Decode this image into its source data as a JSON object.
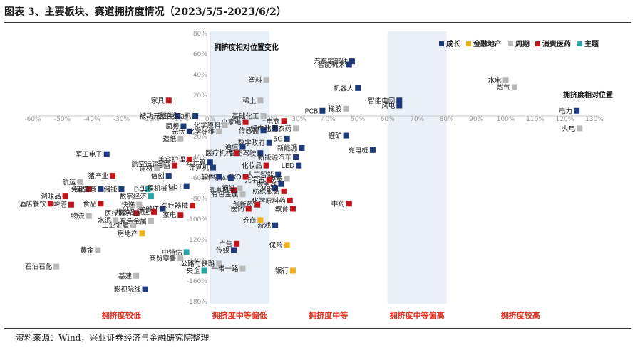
{
  "title": "图表 3、主要板块、赛道拥挤度情况（2023/5/5-2023/6/2）",
  "source": "资料来源：Wind，兴业证券经济与金融研究院整理",
  "colors": {
    "成长": "#1f3a7a",
    "金融地产": "#f2b21c",
    "周期": "#b8b8b8",
    "消费医药": "#c0171e",
    "主题": "#2aa6a6",
    "band_light": "#eaf0f8",
    "band_dark": "#dde6f3",
    "band_text": "#e03020"
  },
  "chart_data": {
    "type": "scatter",
    "xlabel": "拥挤度相对位置",
    "ylabel": "拥挤度相对位置变化",
    "xlim": [
      -60,
      130
    ],
    "ylim": [
      -180,
      80
    ],
    "x_ticks": [
      "-60%",
      "-50%",
      "-40%",
      "-30%",
      "-20%",
      "-10%",
      "0%",
      "10%",
      "20%",
      "30%",
      "40%",
      "50%",
      "60%",
      "70%",
      "80%",
      "90%",
      "100%",
      "110%",
      "120%",
      "130%"
    ],
    "y_ticks": [
      "-180%",
      "-160%",
      "-140%",
      "-120%",
      "-100%",
      "-80%",
      "-60%",
      "-40%",
      "-20%",
      "0%",
      "20%",
      "40%",
      "60%",
      "80%"
    ],
    "bands": [
      {
        "label": "拥挤度较低",
        "from": -60,
        "to": 0
      },
      {
        "label": "拥挤度中等偏低",
        "from": 0,
        "to": 20
      },
      {
        "label": "拥挤度中等",
        "from": 20,
        "to": 60
      },
      {
        "label": "拥挤度中等偏高",
        "from": 60,
        "to": 80
      },
      {
        "label": "拥挤度较高",
        "from": 80,
        "to": 130
      }
    ],
    "legend": [
      "成长",
      "金融地产",
      "周期",
      "消费医药",
      "主题"
    ],
    "legend_position": "top-right",
    "points": [
      {
        "name": "汽车零部件",
        "x": 48,
        "y": 53,
        "group": "成长"
      },
      {
        "name": "智能机床",
        "x": 47,
        "y": 50,
        "group": "成长"
      },
      {
        "name": "机器人",
        "x": 50,
        "y": 27,
        "group": "成长"
      },
      {
        "name": "橡胶",
        "x": 46,
        "y": 7,
        "group": "周期"
      },
      {
        "name": "PCB",
        "x": 38,
        "y": 5,
        "group": "成长"
      },
      {
        "name": "锂矿",
        "x": 46,
        "y": -19,
        "group": "成长"
      },
      {
        "name": "充电桩",
        "x": 55,
        "y": -33,
        "group": "成长"
      },
      {
        "name": "智能电网",
        "x": 64,
        "y": 15,
        "group": "成长"
      },
      {
        "name": "风电",
        "x": 64,
        "y": 10,
        "group": "成长"
      },
      {
        "name": "水电",
        "x": 100,
        "y": 35,
        "group": "周期"
      },
      {
        "name": "燃气",
        "x": 103,
        "y": 28,
        "group": "周期"
      },
      {
        "name": "电力",
        "x": 124,
        "y": 5,
        "group": "成长"
      },
      {
        "name": "火电",
        "x": 125,
        "y": -12,
        "group": "周期"
      },
      {
        "name": "中药",
        "x": 47,
        "y": -85,
        "group": "消费医药"
      },
      {
        "name": "塑料",
        "x": 19,
        "y": 35,
        "group": "周期"
      },
      {
        "name": "稀土",
        "x": 17,
        "y": 15,
        "group": "周期"
      },
      {
        "name": "基础化工",
        "x": 18,
        "y": 0,
        "group": "周期"
      },
      {
        "name": "电商",
        "x": 25,
        "y": -5,
        "group": "消费医药"
      },
      {
        "name": "锂电池",
        "x": 22,
        "y": -12,
        "group": "成长"
      },
      {
        "name": "化肥农药",
        "x": 29,
        "y": -12,
        "group": "周期"
      },
      {
        "name": "传感器",
        "x": 18,
        "y": -14,
        "group": "成长"
      },
      {
        "name": "小家电",
        "x": 12,
        "y": -6,
        "group": "消费医药"
      },
      {
        "name": "5G",
        "x": 26,
        "y": -22,
        "group": "成长"
      },
      {
        "name": "数字政府",
        "x": 20,
        "y": -26,
        "group": "成长"
      },
      {
        "name": "新能源",
        "x": 31,
        "y": -31,
        "group": "成长"
      },
      {
        "name": "智能驾驶",
        "x": 17,
        "y": -36,
        "group": "成长"
      },
      {
        "name": "新能源汽车",
        "x": 29,
        "y": -40,
        "group": "成长"
      },
      {
        "name": "医疗机构",
        "x": 9,
        "y": -36,
        "group": "消费医药"
      },
      {
        "name": "通信",
        "x": 11,
        "y": -30,
        "group": "成长"
      },
      {
        "name": "LED",
        "x": 30,
        "y": -48,
        "group": "成长"
      },
      {
        "name": "化妆品",
        "x": 19,
        "y": -48,
        "group": "消费医药"
      },
      {
        "name": "人工智能",
        "x": 23,
        "y": -57,
        "group": "成长"
      },
      {
        "name": "煤炭",
        "x": 26,
        "y": -61,
        "group": "周期"
      },
      {
        "name": "服务器",
        "x": 24,
        "y": -66,
        "group": "成长"
      },
      {
        "name": "元宇宙",
        "x": 20,
        "y": -62,
        "group": "消费医药"
      },
      {
        "name": "CXO",
        "x": 12,
        "y": -59,
        "group": "消费医药"
      },
      {
        "name": "VR",
        "x": 22,
        "y": -70,
        "group": "成长"
      },
      {
        "name": "纺织服装",
        "x": 25,
        "y": -73,
        "group": "消费医药"
      },
      {
        "name": "化学原料药",
        "x": 27,
        "y": -82,
        "group": "消费医药"
      },
      {
        "name": "乳制品",
        "x": 8,
        "y": -72,
        "group": "消费医药"
      },
      {
        "name": "钢铁",
        "x": 10,
        "y": -70,
        "group": "周期"
      },
      {
        "name": "有色金属",
        "x": 11,
        "y": -76,
        "group": "周期"
      },
      {
        "name": "半导体",
        "x": 7,
        "y": -60,
        "group": "成长"
      },
      {
        "name": "计算机",
        "x": 1,
        "y": -50,
        "group": "成长"
      },
      {
        "name": "云计算",
        "x": 0,
        "y": -45,
        "group": "成长"
      },
      {
        "name": "软件",
        "x": 3,
        "y": -59,
        "group": "成长"
      },
      {
        "name": "创新药",
        "x": 16,
        "y": -86,
        "group": "消费医药"
      },
      {
        "name": "医药",
        "x": 13,
        "y": -90,
        "group": "消费医药"
      },
      {
        "name": "教育",
        "x": 28,
        "y": -90,
        "group": "消费医药"
      },
      {
        "name": "游戏",
        "x": 22,
        "y": -106,
        "group": "成长"
      },
      {
        "name": "券商",
        "x": 17,
        "y": -101,
        "group": "金融地产"
      },
      {
        "name": "广告",
        "x": 9,
        "y": -124,
        "group": "消费医药"
      },
      {
        "name": "传媒",
        "x": 8,
        "y": -130,
        "group": "成长"
      },
      {
        "name": "保险",
        "x": 26,
        "y": -125,
        "group": "金融地产"
      },
      {
        "name": "公路与铁路",
        "x": 3,
        "y": -143,
        "group": "周期"
      },
      {
        "name": "一带一路",
        "x": 11,
        "y": -148,
        "group": "周期"
      },
      {
        "name": "银行",
        "x": 28,
        "y": -150,
        "group": "金融地产"
      },
      {
        "name": "航空运输",
        "x": -16,
        "y": -47,
        "group": "周期"
      },
      {
        "name": "中特估",
        "x": -8,
        "y": -132,
        "group": "主题"
      },
      {
        "name": "央企",
        "x": -2,
        "y": -150,
        "group": "主题"
      },
      {
        "name": "商贸零售",
        "x": -10,
        "y": -138,
        "group": "周期"
      },
      {
        "name": "IDC",
        "x": -21,
        "y": -71,
        "group": "主题"
      },
      {
        "name": "工程机械",
        "x": -13,
        "y": -70,
        "group": "周期"
      },
      {
        "name": "数字经济",
        "x": -20,
        "y": -78,
        "group": "主题"
      },
      {
        "name": "金融IT",
        "x": -16,
        "y": -90,
        "group": "成长"
      },
      {
        "name": "快递",
        "x": -24,
        "y": -86,
        "group": "周期"
      },
      {
        "name": "医疗服务",
        "x": -25,
        "y": -94,
        "group": "消费医药"
      },
      {
        "name": "旅游及景区",
        "x": -19,
        "y": -93,
        "group": "消费医药"
      },
      {
        "name": "有色金属",
        "x": -20,
        "y": -102,
        "group": "周期"
      },
      {
        "name": "工业金属",
        "x": -26,
        "y": -106,
        "group": "周期"
      },
      {
        "name": "房地产",
        "x": -23,
        "y": -114,
        "group": "金融地产"
      },
      {
        "name": "家电",
        "x": -10,
        "y": -96,
        "group": "消费医药"
      },
      {
        "name": "医疗器械",
        "x": -6,
        "y": -87,
        "group": "消费医药"
      },
      {
        "name": "IGBT",
        "x": -8,
        "y": -68,
        "group": "成长"
      },
      {
        "name": "信创",
        "x": -14,
        "y": -58,
        "group": "成长"
      },
      {
        "name": "白酒",
        "x": -12,
        "y": -48,
        "group": "消费医药"
      },
      {
        "name": "建材",
        "x": -18,
        "y": -51,
        "group": "周期"
      },
      {
        "name": "美容护理",
        "x": -7,
        "y": -42,
        "group": "消费医药"
      },
      {
        "name": "造纸",
        "x": -10,
        "y": -22,
        "group": "周期"
      },
      {
        "name": "面板",
        "x": -9,
        "y": -10,
        "group": "成长"
      },
      {
        "name": "被动元器件",
        "x": -11,
        "y": 0,
        "group": "成长"
      },
      {
        "name": "家具",
        "x": -14,
        "y": 15,
        "group": "消费医药"
      },
      {
        "name": "航空发动机",
        "x": -5,
        "y": 0,
        "group": "成长"
      },
      {
        "name": "光伏",
        "x": -7,
        "y": -15,
        "group": "成长"
      },
      {
        "name": "化学纤维",
        "x": 3,
        "y": -15,
        "group": "周期"
      },
      {
        "name": "化学原料",
        "x": 5,
        "y": -9,
        "group": "周期"
      },
      {
        "name": "军工电子",
        "x": -35,
        "y": -37,
        "group": "成长"
      },
      {
        "name": "猪产业",
        "x": -33,
        "y": -58,
        "group": "消费医药"
      },
      {
        "name": "航运",
        "x": -44,
        "y": -64,
        "group": "周期"
      },
      {
        "name": "免税",
        "x": -41,
        "y": -71,
        "group": "消费医药"
      },
      {
        "name": "运营商",
        "x": -37,
        "y": -71,
        "group": "成长"
      },
      {
        "name": "储能",
        "x": -30,
        "y": -71,
        "group": "成长"
      },
      {
        "name": "调味品",
        "x": -49,
        "y": -78,
        "group": "消费医药"
      },
      {
        "name": "酒店餐饮",
        "x": -54,
        "y": -85,
        "group": "消费医药"
      },
      {
        "name": "啤酒",
        "x": -47,
        "y": -86,
        "group": "消费医药"
      },
      {
        "name": "食品",
        "x": -37,
        "y": -85,
        "group": "消费医药"
      },
      {
        "name": "物流",
        "x": -41,
        "y": -97,
        "group": "周期"
      },
      {
        "name": "水泥",
        "x": -32,
        "y": -101,
        "group": "周期"
      },
      {
        "name": "黄金",
        "x": -38,
        "y": -130,
        "group": "周期"
      },
      {
        "name": "石油石化",
        "x": -52,
        "y": -146,
        "group": "周期"
      },
      {
        "name": "基建",
        "x": -25,
        "y": -155,
        "group": "周期"
      },
      {
        "name": "影视院线",
        "x": -22,
        "y": -168,
        "group": "成长"
      }
    ]
  }
}
